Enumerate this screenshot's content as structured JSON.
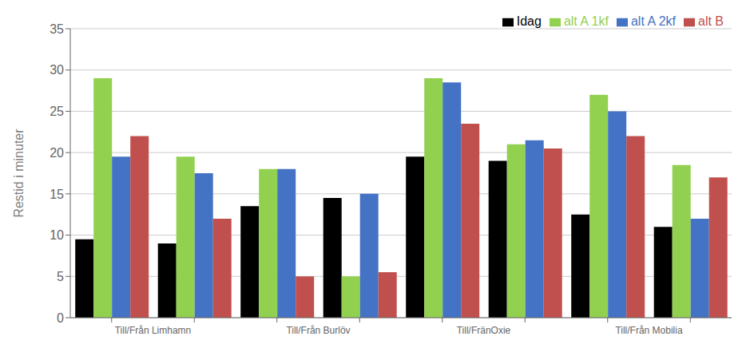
{
  "chart_data": {
    "type": "bar",
    "ylabel": "Restid i minuter",
    "categories": [
      "Till/Från Limhamn",
      null,
      "Till/Från Burlöv",
      null,
      "Till/FränOxie",
      null,
      "Till/Från Mobilia",
      null
    ],
    "series": [
      {
        "name": "Idag",
        "color": "#000000",
        "values": [
          9.5,
          9.0,
          13.5,
          14.5,
          19.5,
          19.0,
          12.5,
          11.0
        ]
      },
      {
        "name": "alt A 1kf",
        "color": "#92d050",
        "values": [
          29.0,
          19.5,
          18.0,
          5.0,
          29.0,
          21.0,
          27.0,
          18.5
        ]
      },
      {
        "name": "alt A 2kf",
        "color": "#4472c4",
        "values": [
          19.5,
          17.5,
          18.0,
          15.0,
          28.5,
          21.5,
          25.0,
          12.0
        ]
      },
      {
        "name": "alt B",
        "color": "#c0504d",
        "values": [
          22.0,
          12.0,
          5.0,
          5.5,
          23.5,
          20.5,
          22.0,
          17.0
        ]
      }
    ],
    "ylim": [
      0,
      35
    ],
    "yticks": [
      0,
      5,
      10,
      15,
      20,
      25,
      30,
      35
    ],
    "grid": true,
    "legend": "upper right"
  }
}
